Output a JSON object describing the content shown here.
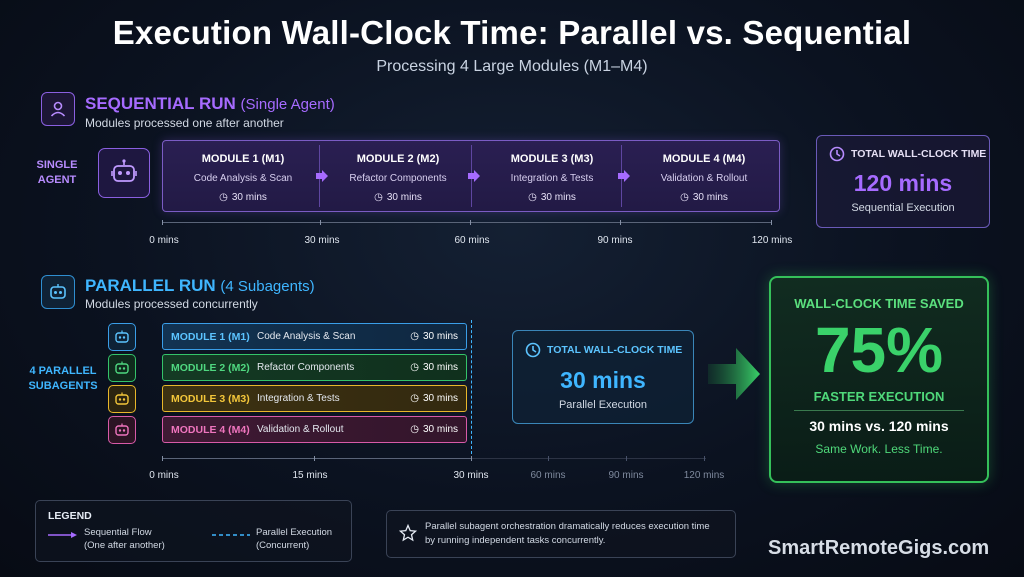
{
  "title": "Execution Wall-Clock Time: Parallel vs. Sequential",
  "subtitle": "Processing 4 Large Modules (M1–M4)",
  "sequential": {
    "heading": "SEQUENTIAL RUN",
    "heading_sub": "(Single Agent)",
    "description": "Modules processed one after another",
    "agent_label_line1": "SINGLE",
    "agent_label_line2": "AGENT",
    "modules": [
      {
        "title": "MODULE 1 (M1)",
        "desc": "Code Analysis & Scan",
        "time": "30 mins"
      },
      {
        "title": "MODULE 2 (M2)",
        "desc": "Refactor Components",
        "time": "30 mins"
      },
      {
        "title": "MODULE 3 (M3)",
        "desc": "Integration & Tests",
        "time": "30 mins"
      },
      {
        "title": "MODULE 4 (M4)",
        "desc": "Validation & Rollout",
        "time": "30 mins"
      }
    ],
    "axis_ticks": [
      "0 mins",
      "30 mins",
      "60 mins",
      "90 mins",
      "120 mins"
    ],
    "total_label": "TOTAL WALL-CLOCK TIME",
    "total_value": "120 mins",
    "total_caption": "Sequential Execution"
  },
  "parallel": {
    "heading": "PARALLEL RUN",
    "heading_sub": "(4 Subagents)",
    "description": "Modules processed concurrently",
    "agent_label_line1": "4 PARALLEL",
    "agent_label_line2": "SUBAGENTS",
    "modules": [
      {
        "title": "MODULE 1 (M1)",
        "desc": "Code Analysis & Scan",
        "time": "30 mins"
      },
      {
        "title": "MODULE 2 (M2)",
        "desc": "Refactor Components",
        "time": "30 mins"
      },
      {
        "title": "MODULE 3 (M3)",
        "desc": "Integration & Tests",
        "time": "30 mins"
      },
      {
        "title": "MODULE 4 (M4)",
        "desc": "Validation & Rollout",
        "time": "30 mins"
      }
    ],
    "axis_ticks": [
      "0 mins",
      "15 mins",
      "30 mins",
      "60 mins",
      "90 mins",
      "120 mins"
    ],
    "total_label": "TOTAL WALL-CLOCK TIME",
    "total_value": "30 mins",
    "total_caption": "Parallel Execution"
  },
  "saved": {
    "label": "WALL-CLOCK TIME SAVED",
    "percent": "75%",
    "caption": "FASTER EXECUTION",
    "comparison": "30 mins vs. 120 mins",
    "tagline": "Same Work. Less Time."
  },
  "legend": {
    "title": "LEGEND",
    "seq_line1": "Sequential Flow",
    "seq_line2": "(One after another)",
    "par_line1": "Parallel Execution",
    "par_line2": "(Concurrent)"
  },
  "note": {
    "line1": "Parallel subagent orchestration dramatically reduces execution time",
    "line2": "by running independent tasks concurrently."
  },
  "brand": "SmartRemoteGigs.com",
  "colors": {
    "sequential": "#a66bff",
    "parallel": "#3fb6ff",
    "m1": "#3a9ee8",
    "m2": "#34c46a",
    "m3": "#e8b72a",
    "m4": "#d85aa8",
    "saved": "#35c05a"
  }
}
